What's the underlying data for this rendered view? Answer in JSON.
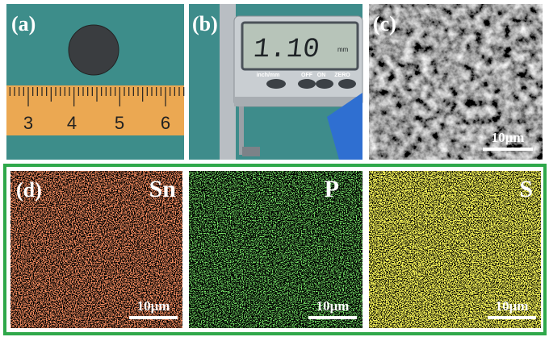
{
  "panels": {
    "a": {
      "label": "(a)",
      "ruler_numbers": [
        "3",
        "4",
        "5",
        "6"
      ]
    },
    "b": {
      "label": "(b)",
      "display": "1.10",
      "unit": "mm",
      "buttons": [
        "inch/mm",
        "OFF",
        "ON",
        "ZERO"
      ]
    },
    "c": {
      "label": "(c)",
      "scale_bar": "10μm"
    },
    "d": {
      "label": "(d)",
      "maps": [
        {
          "element": "Sn",
          "scale_bar": "10μm"
        },
        {
          "element": "P",
          "scale_bar": "10μm"
        },
        {
          "element": "S",
          "scale_bar": "10μm"
        }
      ]
    }
  }
}
